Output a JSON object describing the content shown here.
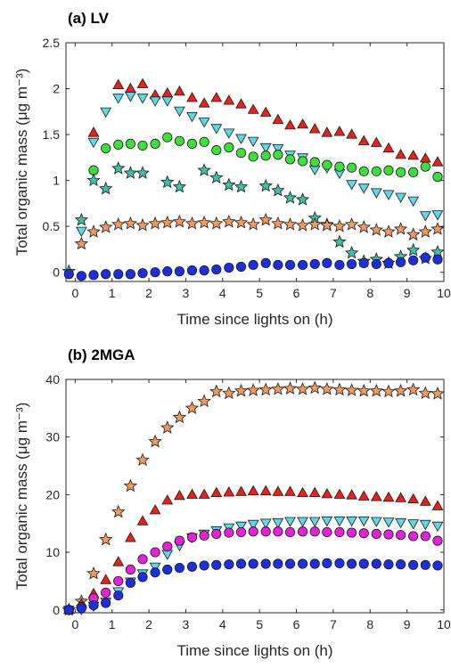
{
  "chart_data": [
    {
      "type": "scatter",
      "title": "(a) LV",
      "xlabel": "Time since lights on (h)",
      "ylabel": "Total organic mass (μg m⁻³)",
      "xlim": [
        -0.25,
        10
      ],
      "ylim": [
        -0.1,
        2.5
      ],
      "xticks": [
        0,
        1,
        2,
        3,
        4,
        5,
        6,
        7,
        8,
        9,
        10
      ],
      "yticks": [
        0,
        0.5,
        1,
        1.5,
        2,
        2.5
      ],
      "ytick_labels": [
        "0",
        "0.5",
        "1",
        "1.5",
        "2",
        "2.5"
      ],
      "grid": false,
      "legend": "none",
      "series": [
        {
          "marker": "triangle-up",
          "color": "#e8211c",
          "x": [
            0.5,
            1.17,
            1.5,
            1.83,
            2.17,
            2.5,
            2.83,
            3.17,
            3.5,
            3.83,
            4.17,
            4.5,
            4.83,
            5.17,
            5.5,
            5.83,
            6.17,
            6.5,
            6.83,
            7.17,
            7.5,
            7.83,
            8.17,
            8.5,
            8.83,
            9.17,
            9.5,
            9.83
          ],
          "y": [
            1.52,
            2.04,
            2.0,
            2.05,
            1.93,
            1.95,
            1.97,
            1.9,
            1.84,
            1.9,
            1.87,
            1.83,
            1.77,
            1.74,
            1.66,
            1.6,
            1.61,
            1.56,
            1.52,
            1.53,
            1.5,
            1.43,
            1.41,
            1.35,
            1.28,
            1.27,
            1.24,
            1.2
          ]
        },
        {
          "marker": "triangle-down",
          "color": "#5fd8e6",
          "x": [
            0.17,
            0.5,
            0.83,
            1.17,
            1.5,
            1.83,
            2.17,
            2.5,
            2.83,
            3.17,
            3.5,
            3.83,
            4.17,
            4.5,
            4.83,
            5.17,
            5.5,
            5.83,
            6.17,
            6.5,
            6.83,
            7.17,
            7.5,
            7.83,
            8.17,
            8.5,
            8.83,
            9.17,
            9.5,
            9.83
          ],
          "y": [
            0.45,
            1.42,
            1.75,
            1.9,
            1.92,
            1.9,
            1.87,
            1.87,
            1.76,
            1.7,
            1.64,
            1.57,
            1.52,
            1.46,
            1.43,
            1.36,
            1.35,
            1.28,
            1.25,
            1.12,
            1.14,
            1.08,
            0.96,
            0.92,
            0.87,
            0.85,
            0.82,
            0.78,
            0.62,
            0.63
          ]
        },
        {
          "marker": "circle",
          "color": "#3de03a",
          "x": [
            0.5,
            0.83,
            1.17,
            1.5,
            1.83,
            2.17,
            2.5,
            2.83,
            3.17,
            3.5,
            3.83,
            4.17,
            4.5,
            4.83,
            5.17,
            5.5,
            5.83,
            6.17,
            6.5,
            6.83,
            7.17,
            7.5,
            7.83,
            8.17,
            8.5,
            8.83,
            9.17,
            9.5,
            9.83
          ],
          "y": [
            1.11,
            1.35,
            1.39,
            1.4,
            1.38,
            1.4,
            1.47,
            1.43,
            1.4,
            1.42,
            1.33,
            1.36,
            1.3,
            1.26,
            1.27,
            1.28,
            1.23,
            1.21,
            1.2,
            1.17,
            1.15,
            1.14,
            1.1,
            1.1,
            1.11,
            1.09,
            1.09,
            1.15,
            1.04
          ]
        },
        {
          "marker": "star",
          "color": "#3fbfa8",
          "x": [
            -0.17,
            0.17,
            0.5,
            0.83,
            1.17,
            1.5,
            1.83,
            2.5,
            2.83,
            3.5,
            3.83,
            4.17,
            4.5,
            5.17,
            5.5,
            5.83,
            6.17,
            6.5,
            6.83,
            7.17,
            7.5,
            7.83,
            8.17,
            8.5,
            8.83,
            9.17,
            9.5,
            9.83
          ],
          "y": [
            0.01,
            0.57,
            1.0,
            0.91,
            1.13,
            1.08,
            1.08,
            0.98,
            0.93,
            1.11,
            1.03,
            0.95,
            0.93,
            0.94,
            0.89,
            0.81,
            0.79,
            0.59,
            0.52,
            0.33,
            0.21,
            0.12,
            0.14,
            0.1,
            0.17,
            0.24,
            0.15,
            0.22
          ]
        },
        {
          "marker": "star",
          "color": "#f29a5e",
          "x": [
            0.17,
            0.5,
            0.83,
            1.17,
            1.5,
            1.83,
            2.17,
            2.5,
            2.83,
            3.17,
            3.5,
            3.83,
            4.17,
            4.5,
            4.83,
            5.17,
            5.5,
            5.83,
            6.17,
            6.5,
            6.83,
            7.17,
            7.5,
            7.83,
            8.17,
            8.5,
            8.83,
            9.17,
            9.5,
            9.83
          ],
          "y": [
            0.31,
            0.44,
            0.49,
            0.52,
            0.53,
            0.51,
            0.53,
            0.54,
            0.55,
            0.53,
            0.54,
            0.53,
            0.55,
            0.54,
            0.52,
            0.57,
            0.53,
            0.52,
            0.51,
            0.52,
            0.51,
            0.5,
            0.52,
            0.49,
            0.46,
            0.44,
            0.47,
            0.41,
            0.44,
            0.47
          ]
        },
        {
          "marker": "circle",
          "color": "#1c2fe0",
          "x": [
            -0.17,
            0.17,
            0.5,
            0.83,
            1.17,
            1.5,
            1.83,
            2.17,
            2.5,
            2.83,
            3.17,
            3.5,
            3.83,
            4.17,
            4.5,
            4.83,
            5.17,
            5.5,
            5.83,
            6.17,
            6.5,
            6.83,
            7.17,
            7.5,
            7.83,
            8.17,
            8.5,
            8.83,
            9.17,
            9.5,
            9.83
          ],
          "y": [
            -0.02,
            -0.04,
            -0.03,
            -0.02,
            -0.02,
            -0.02,
            -0.01,
            0.0,
            0.01,
            0.01,
            0.02,
            0.02,
            0.03,
            0.05,
            0.06,
            0.08,
            0.1,
            0.08,
            0.08,
            0.08,
            0.09,
            0.1,
            0.08,
            0.09,
            0.1,
            0.09,
            0.1,
            0.11,
            0.13,
            0.16,
            0.14
          ]
        }
      ]
    },
    {
      "type": "scatter",
      "title": "(b) 2MGA",
      "xlabel": "Time since lights on (h)",
      "ylabel": "Total organic mass (μg m⁻³)",
      "xlim": [
        -0.25,
        10
      ],
      "ylim": [
        -0.5,
        40
      ],
      "xticks": [
        0,
        1,
        2,
        3,
        4,
        5,
        6,
        7,
        8,
        9,
        10
      ],
      "yticks": [
        0,
        10,
        20,
        30,
        40
      ],
      "ytick_labels": [
        "0",
        "10",
        "20",
        "30",
        "40"
      ],
      "grid": false,
      "legend": "none",
      "series": [
        {
          "marker": "star",
          "color": "#f29a5e",
          "x": [
            -0.17,
            0.17,
            0.5,
            0.83,
            1.17,
            1.5,
            1.83,
            2.17,
            2.5,
            2.83,
            3.17,
            3.5,
            3.83,
            4.17,
            4.5,
            4.83,
            5.17,
            5.5,
            5.83,
            6.17,
            6.5,
            6.83,
            7.17,
            7.5,
            7.83,
            8.17,
            8.5,
            8.83,
            9.17,
            9.5,
            9.83
          ],
          "y": [
            0.0,
            1.5,
            6.3,
            12.2,
            17.0,
            21.5,
            26.0,
            29.2,
            31.6,
            33.4,
            35.0,
            36.2,
            37.9,
            37.6,
            38.0,
            38.1,
            38.2,
            38.3,
            38.4,
            38.3,
            38.5,
            38.3,
            38.2,
            38.1,
            38.0,
            38.0,
            37.9,
            38.0,
            38.2,
            37.6,
            37.5
          ]
        },
        {
          "marker": "triangle-up",
          "color": "#e8211c",
          "x": [
            -0.17,
            0.17,
            0.5,
            0.83,
            1.17,
            1.5,
            1.83,
            2.17,
            2.5,
            2.83,
            3.17,
            3.5,
            3.83,
            4.17,
            4.5,
            4.83,
            5.17,
            5.5,
            5.83,
            6.17,
            6.5,
            6.83,
            7.17,
            7.5,
            7.83,
            8.17,
            8.5,
            8.83,
            9.17,
            9.5,
            9.83
          ],
          "y": [
            0.0,
            1.0,
            2.8,
            5.2,
            8.3,
            12.5,
            15.4,
            17.3,
            19.0,
            19.8,
            20.0,
            20.0,
            20.3,
            20.4,
            20.5,
            20.6,
            20.6,
            20.5,
            20.5,
            20.3,
            20.3,
            20.1,
            20.0,
            19.9,
            19.7,
            19.6,
            19.5,
            19.4,
            19.2,
            18.8,
            18.0
          ]
        },
        {
          "marker": "triangle-down",
          "color": "#5fd8e6",
          "x": [
            -0.17,
            0.17,
            0.5,
            0.83,
            1.17,
            1.5,
            1.83,
            2.17,
            2.5,
            2.83,
            3.17,
            3.5,
            3.83,
            4.17,
            4.5,
            4.83,
            5.17,
            5.5,
            5.83,
            6.17,
            6.5,
            6.83,
            7.17,
            7.5,
            7.83,
            8.17,
            8.5,
            8.83,
            9.17,
            9.5,
            9.83
          ],
          "y": [
            0.0,
            0.1,
            0.7,
            1.4,
            3.2,
            4.9,
            6.3,
            7.5,
            9.7,
            11.2,
            12.6,
            13.2,
            13.8,
            14.3,
            14.6,
            14.9,
            15.1,
            15.2,
            15.4,
            15.4,
            15.4,
            15.5,
            15.5,
            15.5,
            15.5,
            15.4,
            15.3,
            15.2,
            15.0,
            14.9,
            14.6
          ]
        },
        {
          "marker": "circle",
          "color": "#e621d9",
          "x": [
            -0.17,
            0.17,
            0.5,
            0.83,
            1.17,
            1.5,
            1.83,
            2.17,
            2.5,
            2.83,
            3.17,
            3.5,
            3.83,
            4.17,
            4.5,
            4.83,
            5.17,
            5.5,
            5.83,
            6.17,
            6.5,
            6.83,
            7.17,
            7.5,
            7.83,
            8.17,
            8.5,
            8.83,
            9.17,
            9.5,
            9.83
          ],
          "y": [
            0.0,
            0.5,
            2.0,
            3.0,
            5.0,
            7.0,
            8.8,
            10.0,
            11.0,
            12.0,
            12.6,
            12.9,
            13.2,
            13.4,
            13.5,
            13.6,
            13.6,
            13.6,
            13.5,
            13.6,
            13.6,
            13.5,
            13.5,
            13.4,
            13.3,
            13.2,
            13.1,
            13.0,
            12.8,
            12.8,
            12.0
          ]
        },
        {
          "marker": "circle",
          "color": "#1c2fe0",
          "x": [
            -0.17,
            0.17,
            0.5,
            0.83,
            1.17,
            1.5,
            1.83,
            2.17,
            2.5,
            2.83,
            3.17,
            3.5,
            3.83,
            4.17,
            4.5,
            4.83,
            5.17,
            5.5,
            5.83,
            6.17,
            6.5,
            6.83,
            7.17,
            7.5,
            7.83,
            8.17,
            8.5,
            8.83,
            9.17,
            9.5,
            9.83
          ],
          "y": [
            0.0,
            0.3,
            0.8,
            1.2,
            2.5,
            4.7,
            5.7,
            6.5,
            7.0,
            7.3,
            7.5,
            7.7,
            7.8,
            7.9,
            8.0,
            8.0,
            8.0,
            8.0,
            8.0,
            8.0,
            8.0,
            8.1,
            8.1,
            8.0,
            8.0,
            8.0,
            7.9,
            7.9,
            7.8,
            7.8,
            7.7
          ]
        }
      ]
    }
  ]
}
